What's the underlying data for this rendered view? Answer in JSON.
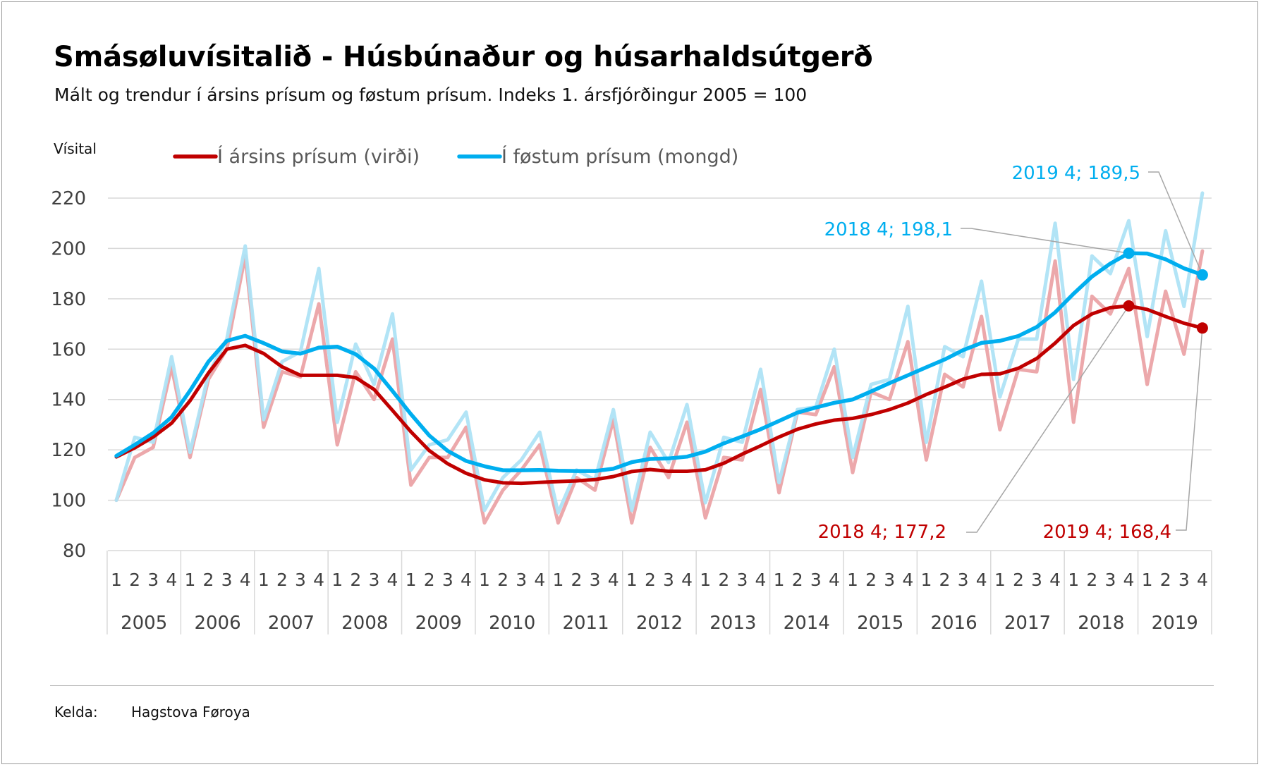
{
  "header": {
    "title": "Smásøluvísitalið - Húsbúnaður og húsarhaldsútgerð",
    "subtitle": "Mált og trendur í ársins prísum og føstum prísum. Indeks 1. ársfjórðingur 2005 = 100"
  },
  "source": {
    "label": "Kelda:",
    "value": "Hagstova Føroya"
  },
  "colors": {
    "red": "#c00000",
    "red_light": "#eba3a6",
    "blue": "#00aeef",
    "blue_light": "#aee3f5",
    "grid": "#d9d9d9",
    "axis_text": "#404040",
    "leader": "#a6a6a6"
  },
  "chart_data": {
    "type": "line",
    "ylabel": "Vísital",
    "ylim": [
      80,
      220
    ],
    "yticks": [
      80,
      100,
      120,
      140,
      160,
      180,
      200,
      220
    ],
    "years": [
      "2005",
      "2006",
      "2007",
      "2008",
      "2009",
      "2010",
      "2011",
      "2012",
      "2013",
      "2014",
      "2015",
      "2016",
      "2017",
      "2018",
      "2019"
    ],
    "quarters": [
      "1",
      "2",
      "3",
      "4"
    ],
    "series": [
      {
        "name": "Í ársins prísum (virði)",
        "color": "red",
        "values": [
          100,
          117,
          121,
          153,
          117,
          148,
          160,
          197,
          129,
          151,
          149,
          178,
          122,
          151,
          140,
          164,
          106,
          117,
          117,
          129,
          91,
          104,
          112,
          122,
          91,
          109,
          104,
          132,
          91,
          121,
          109,
          131,
          93,
          117,
          116,
          144,
          103,
          135,
          134,
          153,
          111,
          143,
          140,
          163,
          116,
          150,
          145,
          173,
          128,
          152,
          151,
          195,
          131,
          181,
          174,
          192,
          146,
          183,
          158,
          199
        ]
      },
      {
        "name": "Í ársins prísum (virði) – trend",
        "color": "red",
        "values": [
          117.2,
          120.8,
          125.1,
          130.6,
          139.5,
          150.5,
          160.0,
          161.5,
          158.3,
          153.0,
          149.6,
          149.6,
          149.6,
          148.7,
          144.0,
          135.7,
          127.2,
          119.7,
          114.5,
          110.7,
          108.1,
          106.9,
          106.7,
          107.1,
          107.4,
          107.7,
          108.2,
          109.4,
          111.4,
          112.2,
          111.5,
          111.5,
          112.1,
          114.7,
          118.3,
          121.6,
          125.1,
          128.2,
          130.3,
          131.8,
          132.5,
          134.0,
          136.0,
          138.6,
          142.0,
          144.9,
          148.1,
          150.0,
          150.2,
          152.4,
          156.3,
          162.4,
          169.4,
          174.0,
          176.5,
          177.2,
          175.8,
          173.0,
          170.3,
          168.4
        ]
      },
      {
        "name": "Í føstum prísum (mongd)",
        "color": "blue",
        "values": [
          100,
          125,
          123,
          157,
          119,
          150,
          164,
          201,
          132,
          155,
          159,
          192,
          131,
          162,
          146,
          174,
          112,
          122,
          124,
          135,
          96,
          109,
          116,
          127,
          95,
          112,
          108,
          136,
          96,
          127,
          115,
          138,
          99,
          125,
          123,
          152,
          107,
          136,
          137,
          160,
          117,
          146,
          148,
          177,
          123,
          161,
          157,
          187,
          141,
          164,
          164,
          210,
          148,
          197,
          190,
          211,
          165,
          207,
          177,
          222
        ]
      },
      {
        "name": "Í føstum prísum (mongd) – trend",
        "color": "blue",
        "values": [
          117.6,
          122.0,
          126.7,
          133.0,
          143.5,
          155.0,
          163.3,
          165.3,
          162.4,
          159.1,
          158.2,
          160.6,
          161.0,
          158.0,
          152.3,
          143.4,
          134.2,
          125.7,
          119.6,
          115.6,
          113.5,
          111.9,
          111.9,
          112.0,
          111.7,
          111.6,
          111.6,
          112.5,
          115.1,
          116.4,
          116.6,
          117.3,
          119.3,
          122.6,
          125.3,
          128.2,
          131.5,
          134.8,
          136.8,
          138.7,
          140.0,
          143.2,
          146.5,
          149.6,
          152.8,
          155.9,
          159.6,
          162.5,
          163.3,
          165.2,
          168.8,
          174.6,
          182.0,
          188.8,
          194.0,
          198.1,
          198.0,
          195.7,
          192.1,
          189.5
        ]
      }
    ],
    "legend": [
      {
        "label": "Í ársins prísum (virði)",
        "color": "red"
      },
      {
        "label": "Í føstum prísum (mongd)",
        "color": "blue"
      }
    ],
    "legend_position": "top",
    "annotations": [
      {
        "label": "2019 4; 189,5",
        "series": 3,
        "index": 59,
        "color": "blue"
      },
      {
        "label": "2018 4; 198,1",
        "series": 3,
        "index": 55,
        "color": "blue"
      },
      {
        "label": "2018 4; 177,2",
        "series": 1,
        "index": 55,
        "color": "red"
      },
      {
        "label": "2019 4; 168,4",
        "series": 1,
        "index": 59,
        "color": "red"
      }
    ]
  }
}
